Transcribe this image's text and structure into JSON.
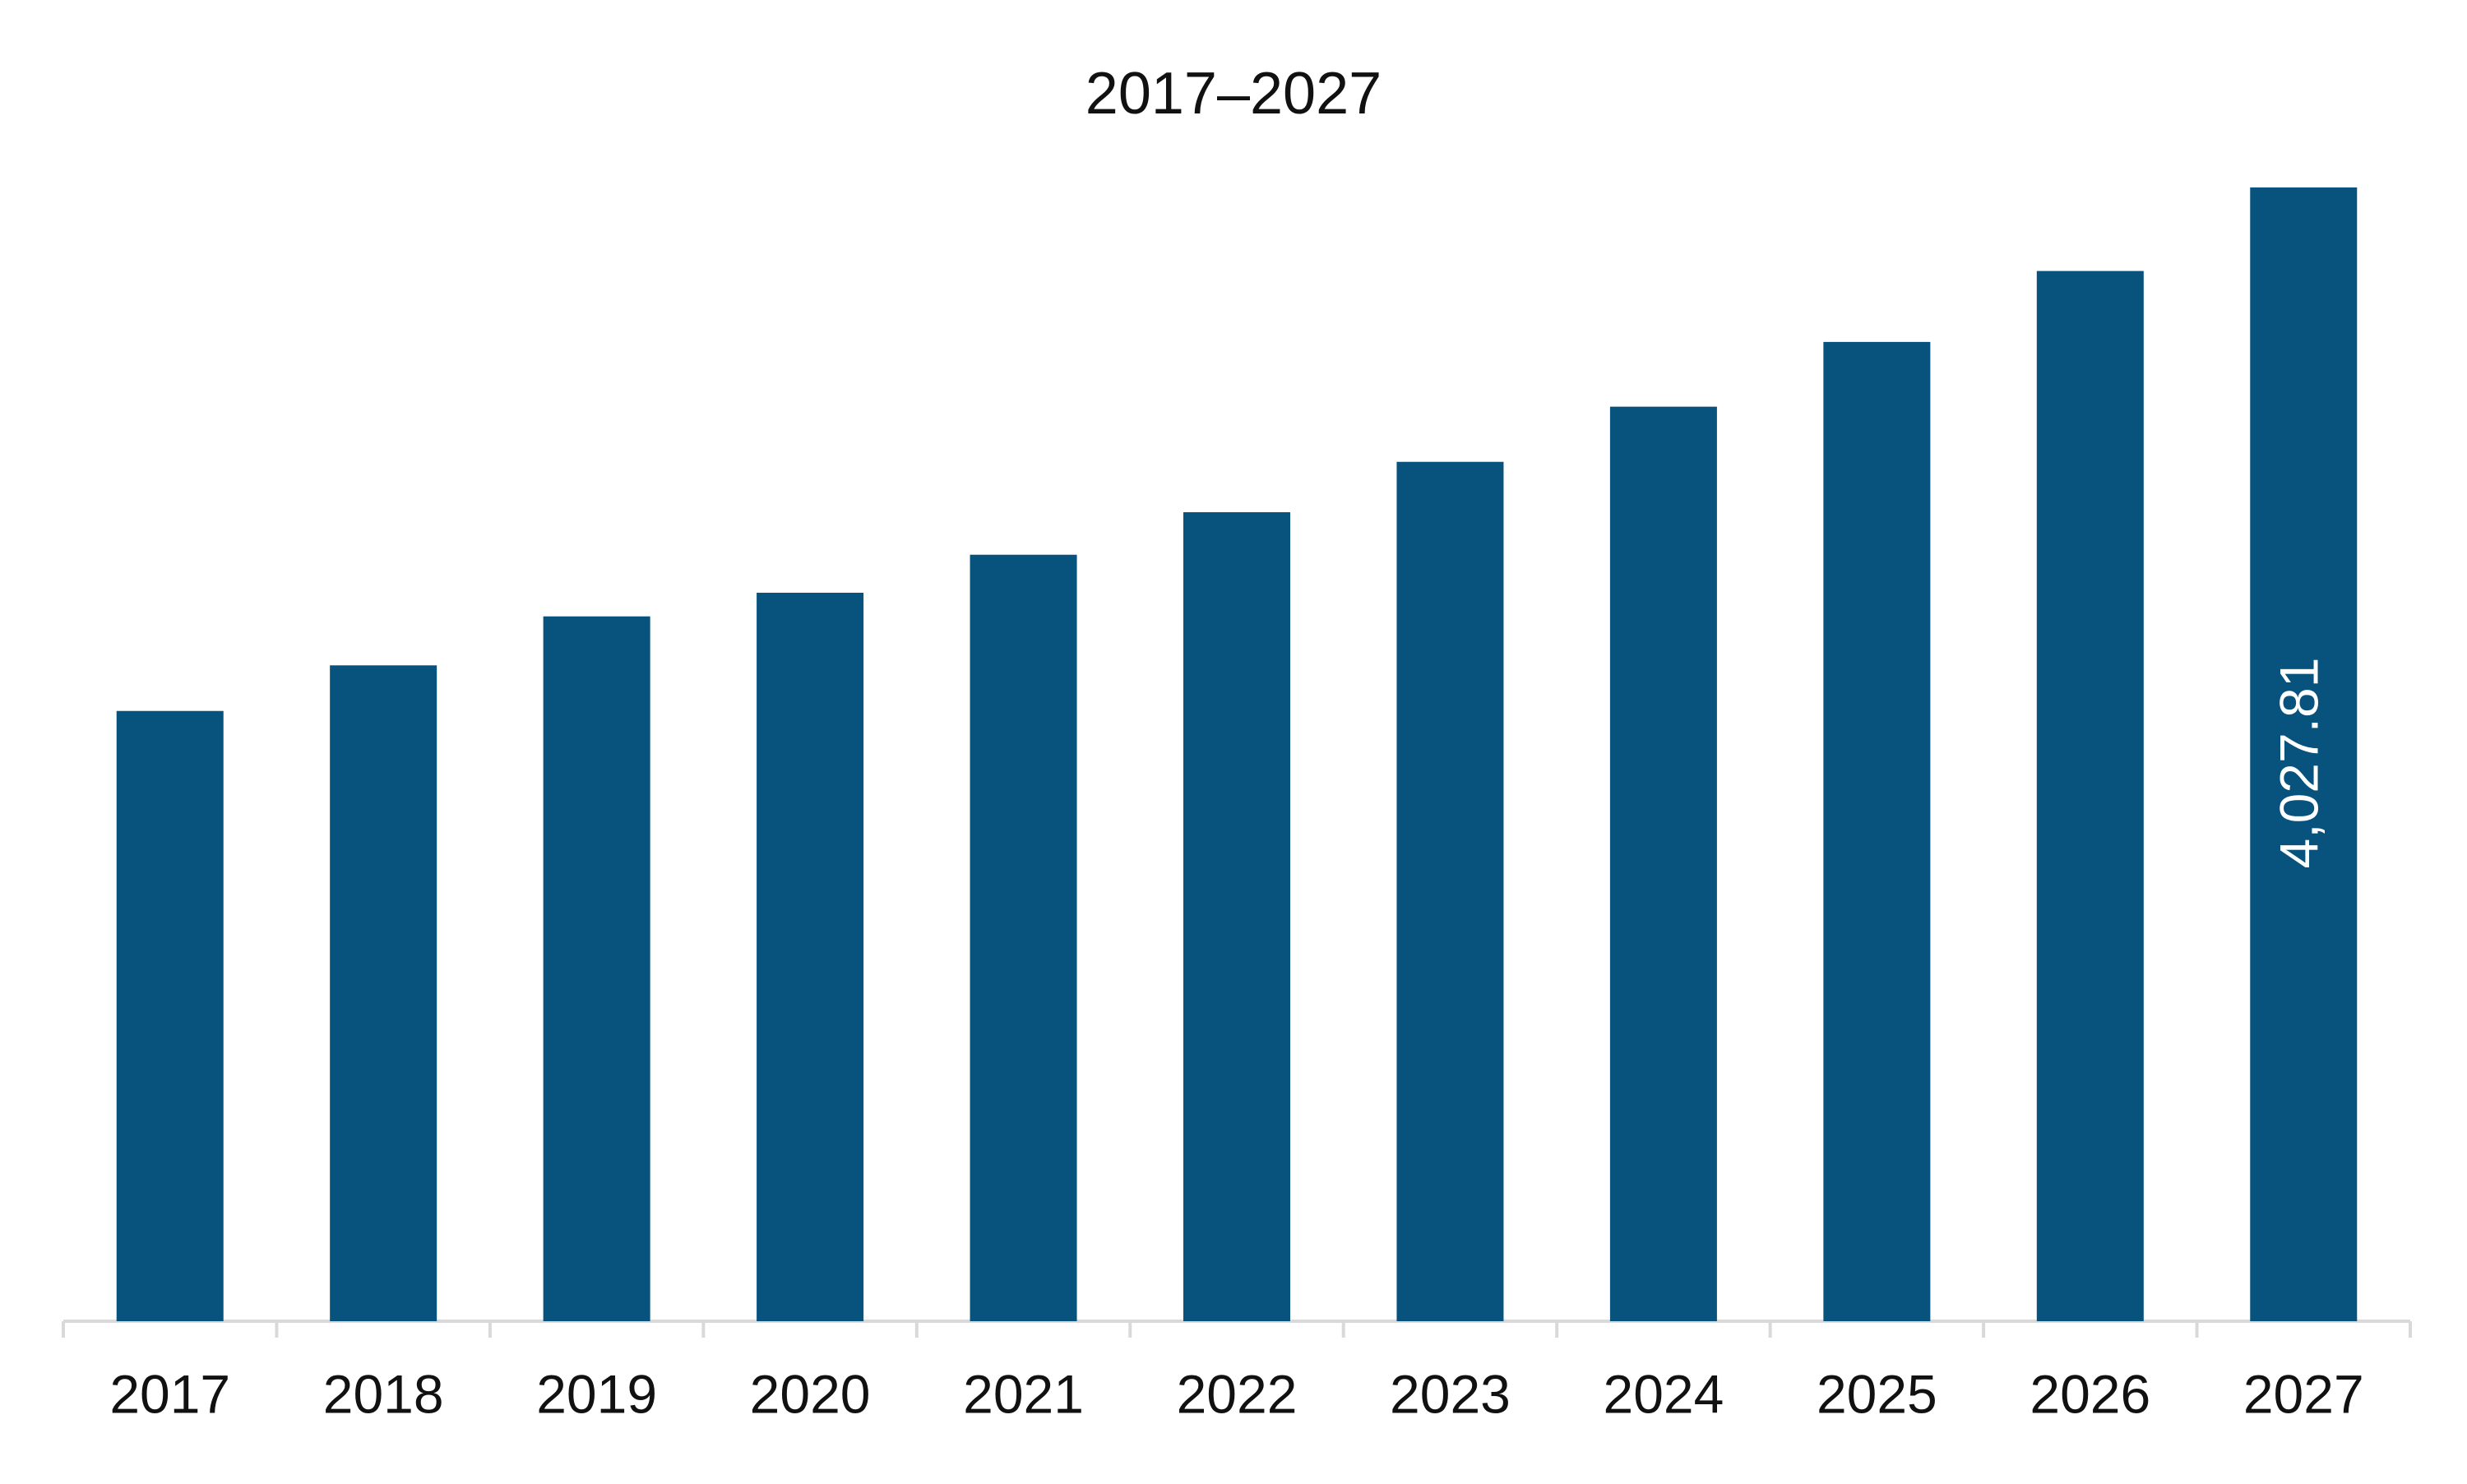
{
  "chart_data": {
    "type": "bar",
    "title": "2017–2027",
    "categories": [
      "2017",
      "2018",
      "2019",
      "2020",
      "2021",
      "2022",
      "2023",
      "2024",
      "2025",
      "2026",
      "2027"
    ],
    "values": [
      2168,
      2330,
      2504,
      2588,
      2723,
      2874,
      3053,
      3249,
      3479,
      3731,
      4027.81
    ],
    "value_labels": [
      null,
      null,
      null,
      null,
      null,
      null,
      null,
      null,
      null,
      null,
      "4,027.81"
    ],
    "color": "#08527e"
  }
}
